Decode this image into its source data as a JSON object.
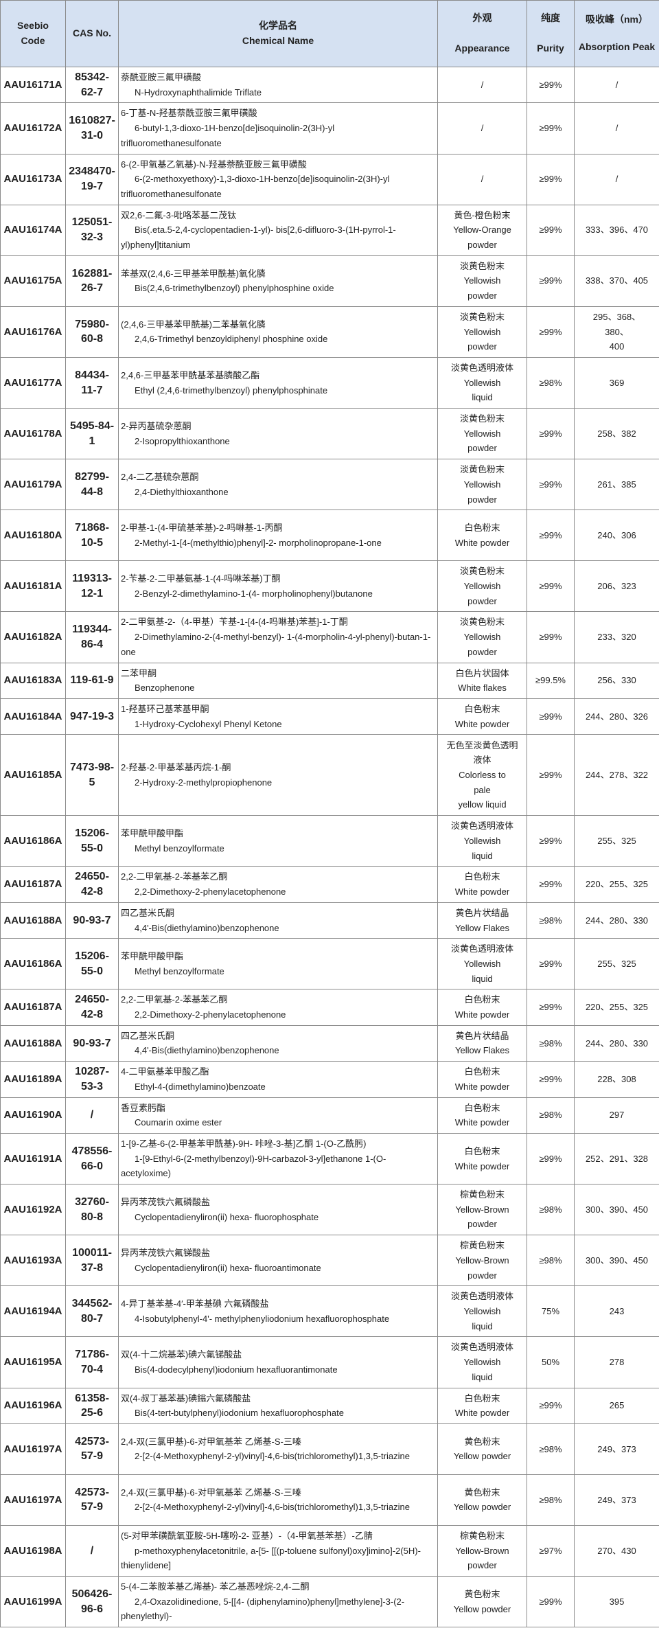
{
  "header": {
    "code": "Seebio Code",
    "cas": "CAS  No.",
    "name_cn": "化学品名",
    "name_en": "Chemical Name",
    "appearance_cn": "外观",
    "appearance_en": "Appearance",
    "purity_cn": "纯度",
    "purity_en": "Purity",
    "peak_cn": "吸收峰（nm）",
    "peak_en": "Absorption Peak"
  },
  "colors": {
    "header_bg": "#d5e1f2",
    "border": "#8a8a8a"
  },
  "rows": [
    {
      "code": "AAU16171A",
      "cas": "85342-62-7",
      "name_cn": "萘酰亚胺三氟甲磺酸",
      "name_en": "N-Hydroxynaphthalimide Triflate",
      "appearance": "/",
      "purity": "≥99%",
      "peak": "/"
    },
    {
      "code": "AAU16172A",
      "cas": "1610827-31-0",
      "name_cn": "6-丁基-N-羟基萘酰亚胺三氟甲磺酸",
      "name_en": "6-butyl-1,3-dioxo-1H-benzo[de]isoquinolin-2(3H)-yl trifluoromethanesulfonate",
      "appearance": "/",
      "purity": "≥99%",
      "peak": "/"
    },
    {
      "code": "AAU16173A",
      "cas": "2348470-19-7",
      "name_cn": "6-(2-甲氧基乙氧基)-N-羟基萘酰亚胺三氟甲磺酸",
      "name_en": "6-(2-methoxyethoxy)-1,3-dioxo-1H-benzo[de]isoquinolin-2(3H)-yl trifluoromethanesulfonate",
      "appearance": "/",
      "purity": "≥99%",
      "peak": "/"
    },
    {
      "code": "AAU16174A",
      "cas": "125051-32-3",
      "name_cn": "双2,6-二氟-3-吡咯苯基二茂钛",
      "name_en": "Bis(.eta.5-2,4-cyclopentadien-1-yl)- bis[2,6-difluoro-3-(1H-pyrrol-1-yl)phenyl]titanium",
      "appearance": "黄色-橙色粉末\nYellow-Orange\npowder",
      "purity": "≥99%",
      "peak": "333、396、470"
    },
    {
      "code": "AAU16175A",
      "cas": "162881-26-7",
      "name_cn": "苯基双(2,4,6-三甲基苯甲酰基)氧化膦",
      "name_en": "Bis(2,4,6-trimethylbenzoyl) phenylphosphine oxide",
      "appearance": "淡黄色粉末\nYellowish\npowder",
      "purity": "≥99%",
      "peak": "338、370、405"
    },
    {
      "code": "AAU16176A",
      "cas": "75980-60-8",
      "name_cn": "(2,4,6-三甲基苯甲酰基)二苯基氧化膦",
      "name_en": "2,4,6-Trimethyl benzoyldiphenyl phosphine oxide",
      "appearance": "淡黄色粉末\nYellowish\npowder",
      "purity": "≥99%",
      "peak": "295、368、\n380、\n400"
    },
    {
      "code": "AAU16177A",
      "cas": "84434-11-7",
      "name_cn": "2,4,6-三甲基苯甲酰基苯基膦酸乙酯",
      "name_en": "Ethyl (2,4,6-trimethylbenzoyl) phenylphosphinate",
      "appearance": "淡黄色透明液体\nYollewish\nliquid",
      "purity": "≥98%",
      "peak": "369"
    },
    {
      "code": "AAU16178A",
      "cas": "5495-84-1",
      "name_cn": "2-异丙基硫杂蒽酮",
      "name_en": "2-Isopropylthioxanthone",
      "appearance": "淡黄色粉末\nYellowish\npowder",
      "purity": "≥99%",
      "peak": "258、382"
    },
    {
      "code": "AAU16179A",
      "cas": "82799-44-8",
      "name_cn": "2,4-二乙基硫杂蒽酮",
      "name_en": "2,4-Diethylthioxanthone",
      "appearance": "淡黄色粉末\nYellowish\npowder",
      "purity": "≥99%",
      "peak": "261、385"
    },
    {
      "code": "AAU16180A",
      "cas": "71868-10-5",
      "name_cn": "2-甲基-1-(4-甲硫基苯基)-2-吗啉基-1-丙酮",
      "name_en": "2-Methyl-1-[4-(methylthio)phenyl]-2- morpholinopropane-1-one",
      "appearance": "白色粉末\nWhite powder",
      "purity": "≥99%",
      "peak": "240、306"
    },
    {
      "code": "AAU16181A",
      "cas": "119313-12-1",
      "name_cn": "2-苄基-2-二甲基氨基-1-(4-吗啉苯基)丁酮",
      "name_en": "2-Benzyl-2-dimethylamino-1-(4- morpholinophenyl)butanone",
      "appearance": "淡黄色粉末\nYellowish\npowder",
      "purity": "≥99%",
      "peak": "206、323"
    },
    {
      "code": "AAU16182A",
      "cas": "119344-86-4",
      "name_cn": "2-二甲氨基-2-（4-甲基）苄基-1-[4-(4-吗啉基)苯基]-1-丁酮",
      "name_en": "2-Dimethylamino-2-(4-methyl-benzyl)- 1-(4-morpholin-4-yl-phenyl)-butan-1-one",
      "appearance": "淡黄色粉末\nYellowish\npowder",
      "purity": "≥99%",
      "peak": "233、320"
    },
    {
      "code": "AAU16183A",
      "cas": "119-61-9",
      "name_cn": "二苯甲酮",
      "name_en": "Benzophenone",
      "appearance": "白色片状固体\nWhite flakes",
      "purity": "≥99.5%",
      "peak": "256、330"
    },
    {
      "code": "AAU16184A",
      "cas": "947-19-3",
      "name_cn": "1-羟基环己基苯基甲酮",
      "name_en": "1-Hydroxy-Cyclohexyl Phenyl Ketone",
      "appearance": "白色粉末\nWhite powder",
      "purity": "≥99%",
      "peak": "244、280、326"
    },
    {
      "code": "AAU16185A",
      "cas": "7473-98-5",
      "name_cn": "2-羟基-2-甲基苯基丙烷-1-酮",
      "name_en": "2-Hydroxy-2-methylpropiophenone",
      "appearance": "无色至淡黄色透明\n液体\nColorless to\npale\nyellow liquid",
      "purity": "≥99%",
      "peak": "244、278、322"
    },
    {
      "code": "AAU16186A",
      "cas": "15206-55-0",
      "name_cn": "苯甲酰甲酸甲酯",
      "name_en": "Methyl benzoylformate",
      "appearance": "淡黄色透明液体\nYollewish\nliquid",
      "purity": "≥99%",
      "peak": "255、325"
    },
    {
      "code": "AAU16187A",
      "cas": "24650-42-8",
      "name_cn": "2,2-二甲氧基-2-苯基苯乙酮",
      "name_en": "2,2-Dimethoxy-2-phenylacetophenone",
      "appearance": "白色粉末\nWhite powder",
      "purity": "≥99%",
      "peak": "220、255、325"
    },
    {
      "code": "AAU16188A",
      "cas": "90-93-7",
      "name_cn": "四乙基米氏酮",
      "name_en": "4,4'-Bis(diethylamino)benzophenone",
      "appearance": "黄色片状结晶\nYellow Flakes",
      "purity": "≥98%",
      "peak": "244、280、330"
    },
    {
      "code": "AAU16186A",
      "cas": "15206-55-0",
      "name_cn": "苯甲酰甲酸甲酯",
      "name_en": "Methyl benzoylformate",
      "appearance": "淡黄色透明液体\nYollewish\nliquid",
      "purity": "≥99%",
      "peak": "255、325"
    },
    {
      "code": "AAU16187A",
      "cas": "24650-42-8",
      "name_cn": "2,2-二甲氧基-2-苯基苯乙酮",
      "name_en": "2,2-Dimethoxy-2-phenylacetophenone",
      "appearance": "白色粉末\nWhite powder",
      "purity": "≥99%",
      "peak": "220、255、325"
    },
    {
      "code": "AAU16188A",
      "cas": "90-93-7",
      "name_cn": "四乙基米氏酮",
      "name_en": "4,4'-Bis(diethylamino)benzophenone",
      "appearance": "黄色片状结晶\nYellow Flakes",
      "purity": "≥98%",
      "peak": "244、280、330"
    },
    {
      "code": "AAU16189A",
      "cas": "10287-53-3",
      "name_cn": "4-二甲氨基苯甲酸乙酯",
      "name_en": "Ethyl-4-(dimethylamino)benzoate",
      "appearance": "白色粉末\nWhite powder",
      "purity": "≥99%",
      "peak": "228、308"
    },
    {
      "code": "AAU16190A",
      "cas": "/",
      "name_cn": "香豆素肟酯",
      "name_en": "Coumarin oxime ester",
      "appearance": "白色粉末\nWhite powder",
      "purity": "≥98%",
      "peak": "297"
    },
    {
      "code": "AAU16191A",
      "cas": "478556-66-0",
      "name_cn": "1-[9-乙基-6-(2-甲基苯甲酰基)-9H- 咔唑-3-基]乙酮 1-(O-乙酰肟)",
      "name_en": "1-[9-Ethyl-6-(2-methylbenzoyl)-9H-carbazol-3-yl]ethanone 1-(O-acetyloxime)",
      "appearance": "白色粉末\nWhite powder",
      "purity": "≥99%",
      "peak": "252、291、328"
    },
    {
      "code": "AAU16192A",
      "cas": "32760-80-8",
      "name_cn": "异丙苯茂铁六氟磷酸盐",
      "name_en": "Cyclopentadienyliron(ii) hexa- fluorophosphate",
      "appearance": "棕黄色粉末\nYellow-Brown\npowder",
      "purity": "≥98%",
      "peak": "300、390、450"
    },
    {
      "code": "AAU16193A",
      "cas": "100011-37-8",
      "name_cn": "异丙苯茂铁六氟锑酸盐",
      "name_en": "Cyclopentadienyliron(ii) hexa- fluoroantimonate",
      "appearance": "棕黄色粉末\nYellow-Brown\npowder",
      "purity": "≥98%",
      "peak": "300、390、450"
    },
    {
      "code": "AAU16194A",
      "cas": "344562-80-7",
      "name_cn": "4-异丁基苯基-4′-甲苯基碘 六氟磷酸盐",
      "name_en": "4-Isobutylphenyl-4'- methylphenyliodonium hexafluorophosphate",
      "appearance": "淡黄色透明液体\nYellowish\nliquid",
      "purity": "75%",
      "peak": "243"
    },
    {
      "code": "AAU16195A",
      "cas": "71786-70-4",
      "name_cn": "双(4-十二烷基苯)碘六氟锑酸盐",
      "name_en": "Bis(4-dodecylphenyl)iodonium hexafluorantimonate",
      "appearance": "淡黄色透明液体\nYellowish\nliquid",
      "purity": "50%",
      "peak": "278"
    },
    {
      "code": "AAU16196A",
      "cas": "61358-25-6",
      "name_cn": "双(4-叔丁基苯基)碘鎓六氟磷酸盐",
      "name_en": "Bis(4-tert-butylphenyl)iodonium hexafluorophosphate",
      "appearance": "白色粉末\nWhite powder",
      "purity": "≥99%",
      "peak": "265"
    },
    {
      "code": "AAU16197A",
      "cas": "42573-57-9",
      "name_cn": "2,4-双(三氯甲基)-6-对甲氧基苯 乙烯基-S-三嗪",
      "name_en": "2-[2-(4-Methoxyphenyl-2-yl)vinyl]-4,6-bis(trichloromethyl)1,3,5-triazine",
      "appearance": "黄色粉末\nYellow powder",
      "purity": "≥98%",
      "peak": "249、373"
    },
    {
      "code": "AAU16197A",
      "cas": "42573-57-9",
      "name_cn": "2,4-双(三氯甲基)-6-对甲氧基苯 乙烯基-S-三嗪",
      "name_en": "2-[2-(4-Methoxyphenyl-2-yl)vinyl]-4,6-bis(trichloromethyl)1,3,5-triazine",
      "appearance": "黄色粉末\nYellow powder",
      "purity": "≥98%",
      "peak": "249、373"
    },
    {
      "code": "AAU16198A",
      "cas": "/",
      "name_cn": "(5-对甲苯磺酰氧亚胺-5H-噻吩-2- 亚基）-（4-甲氧基苯基）-乙腈",
      "name_en": "p-methoxyphenylacetonitrile, a-[5- [[(p-toluene sulfonyl)oxy]imino]-2(5H)-thienylidene]",
      "appearance": "棕黄色粉末\nYellow-Brown\npowder",
      "purity": "≥97%",
      "peak": "270、430"
    },
    {
      "code": "AAU16199A",
      "cas": "506426-96-6",
      "name_cn": "5-(4-二苯胺苯基乙烯基)- 苯乙基恶唑烷-2,4-二酮",
      "name_en": "2,4-Oxazolidinedione, 5-[[4- (diphenylamino)phenyl]methylene]-3-(2-phenylethyl)-",
      "appearance": "黄色粉末\nYellow powder",
      "purity": "≥99%",
      "peak": "395"
    }
  ]
}
